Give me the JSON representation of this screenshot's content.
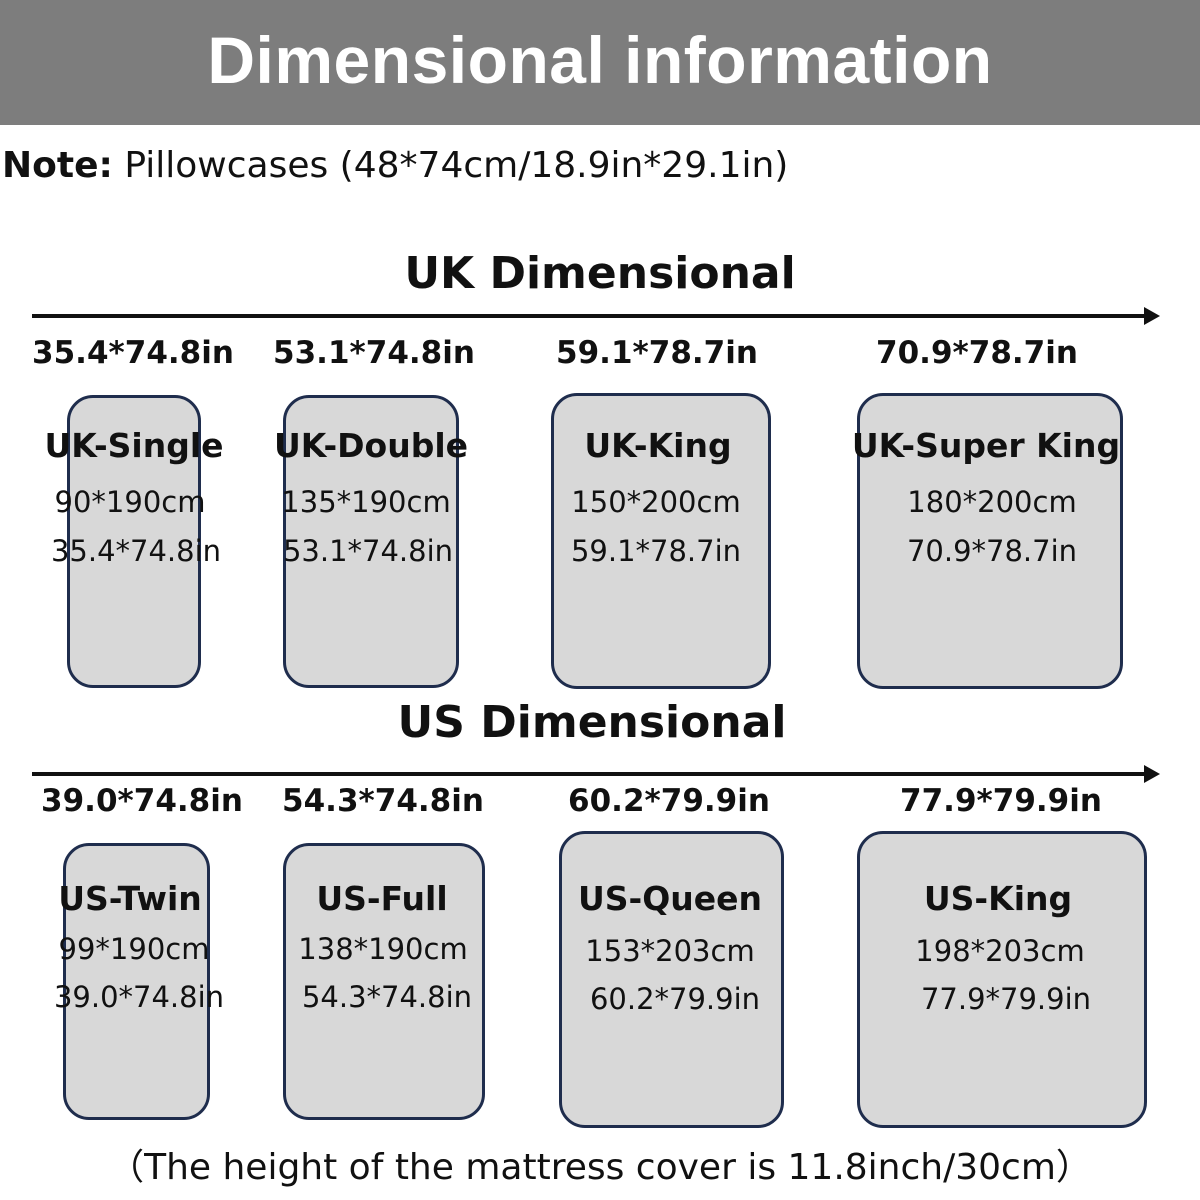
{
  "header": {
    "title": "Dimensional information"
  },
  "note": {
    "label": "Note:",
    "text": " Pillowcases (48*74cm/18.9in*29.1in)"
  },
  "uk": {
    "title": "UK Dimensional",
    "items": [
      {
        "top_label": "35.4*74.8in",
        "name": "UK-Single",
        "cm": "90*190cm",
        "inch": "35.4*74.8in"
      },
      {
        "top_label": "53.1*74.8in",
        "name": "UK-Double",
        "cm": "135*190cm",
        "inch": "53.1*74.8in"
      },
      {
        "top_label": "59.1*78.7in",
        "name": "UK-King",
        "cm": "150*200cm",
        "inch": "59.1*78.7in"
      },
      {
        "top_label": "70.9*78.7in",
        "name": "UK-Super King",
        "cm": "180*200cm",
        "inch": "70.9*78.7in"
      }
    ]
  },
  "us": {
    "title": "US Dimensional",
    "items": [
      {
        "top_label": "39.0*74.8in",
        "name": "US-Twin",
        "cm": "99*190cm",
        "inch": "39.0*74.8in"
      },
      {
        "top_label": "54.3*74.8in",
        "name": "US-Full",
        "cm": "138*190cm",
        "inch": "54.3*74.8in"
      },
      {
        "top_label": "60.2*79.9in",
        "name": "US-Queen",
        "cm": "153*203cm",
        "inch": "60.2*79.9in"
      },
      {
        "top_label": "77.9*79.9in",
        "name": "US-King",
        "cm": "198*203cm",
        "inch": "77.9*79.9in"
      }
    ]
  },
  "footer": {
    "text": "（The height of the mattress cover is 11.8inch/30cm）"
  },
  "colors": {
    "header_bg": "#7d7d7d",
    "bed_fill": "#d8d8d8",
    "bed_border": "#1f2d4d"
  }
}
